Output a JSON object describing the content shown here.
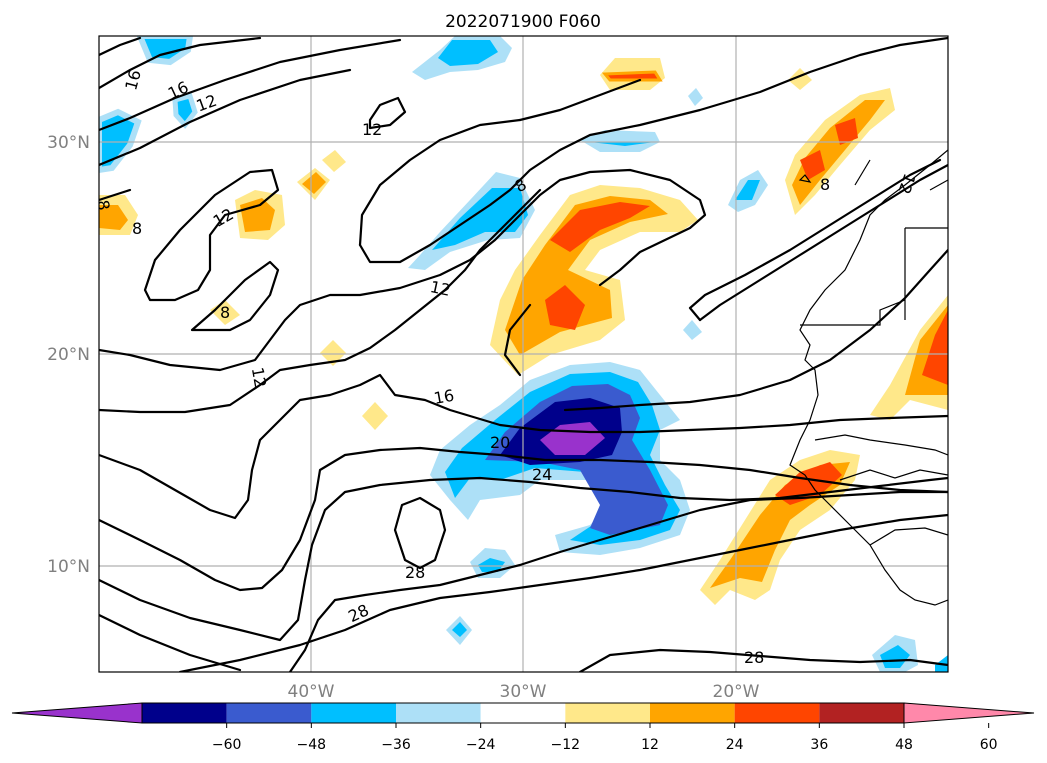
{
  "title": "2022071900 F060",
  "map": {
    "lat_range": [
      5,
      35
    ],
    "lon_range": [
      -50,
      -10
    ],
    "lat_ticks": [
      {
        "label": "30°N",
        "value": 30
      },
      {
        "label": "20°N",
        "value": 20
      },
      {
        "label": "10°N",
        "value": 10
      }
    ],
    "lon_ticks": [
      {
        "label": "40°W",
        "value": -40
      },
      {
        "label": "30°W",
        "value": -30
      },
      {
        "label": "20°W",
        "value": -20
      }
    ],
    "grid": true
  },
  "contour_labels": [
    "16",
    "16",
    "12",
    "12",
    "12",
    "8",
    "12",
    "8",
    "12",
    "16",
    "20",
    "24",
    "28",
    "28",
    "28",
    "8",
    "12",
    "8",
    "8"
  ],
  "colorbar": {
    "ticks": [
      "−60",
      "−48",
      "−36",
      "−24",
      "−12",
      "12",
      "24",
      "36",
      "48",
      "60"
    ],
    "colors": [
      "#9932cc",
      "#00008b",
      "#3a5bcf",
      "#00bfff",
      "#ade0f7",
      "#ffffff",
      "#ffe88a",
      "#ffa500",
      "#ff4500",
      "#b22222",
      "#ff88aa"
    ]
  }
}
